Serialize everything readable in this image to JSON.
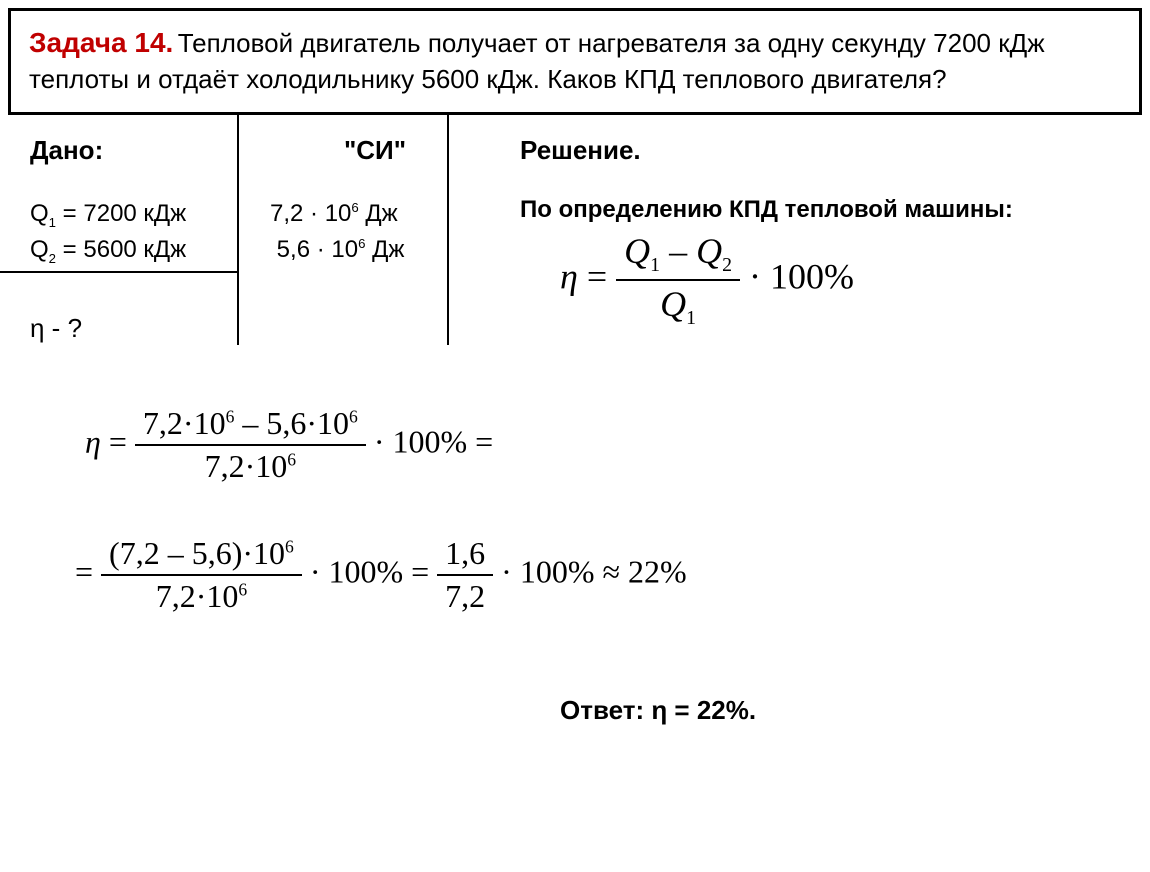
{
  "problem": {
    "title": "Задача 14.",
    "text": " Тепловой двигатель получает от нагревателя за одну секунду 7200 кДж теплоты и отдаёт холодильнику 5600 кДж. Каков КПД теплового двигателя?"
  },
  "given": {
    "dano_label": "Дано:",
    "si_label": "\"СИ\"",
    "solution_label": "Решение.",
    "q1_label": "Q",
    "q1_sub": "1",
    "q1_eq": " = 7200 кДж",
    "q2_label": "Q",
    "q2_sub": "2",
    "q2_eq": " = 5600 кДж",
    "q1_si": "7,2 · 10",
    "q1_si_sup": "6",
    "q1_si_unit": " Дж",
    "q2_si": "5,6 · 10",
    "q2_si_sup": "6",
    "q2_si_unit": " Дж",
    "find": "η - ?"
  },
  "solution": {
    "intro": "По определению КПД тепловой машины:",
    "formula": {
      "eta": "η",
      "eq": " = ",
      "num_q1": "Q",
      "num_sub1": "1",
      "num_minus": " – ",
      "num_q2": "Q",
      "num_sub2": "2",
      "den_q": "Q",
      "den_sub": "1",
      "times100": " · 100%"
    },
    "calc1": {
      "eta": "η",
      "eq": " = ",
      "num_a": "7,2·10",
      "num_a_sup": "6",
      "num_minus": " – 5,6·10",
      "num_b_sup": "6",
      "den": "7,2·10",
      "den_sup": "6",
      "times100": " · 100% ="
    },
    "calc2": {
      "eq": "= ",
      "num1": "(7,2 – 5,6)·10",
      "num1_sup": "6",
      "den1": "7,2·10",
      "den1_sup": "6",
      "mid": " · 100% = ",
      "num2": "1,6",
      "den2": "7,2",
      "end": " · 100% ≈ 22%"
    }
  },
  "answer": {
    "label": "Ответ: η = 22%."
  },
  "colors": {
    "title": "#c00000",
    "text": "#000000",
    "border": "#000000",
    "background": "#ffffff"
  }
}
